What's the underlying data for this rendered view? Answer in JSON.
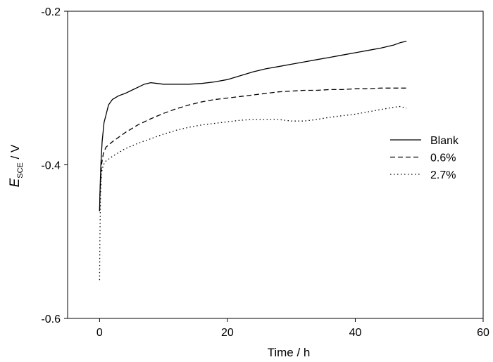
{
  "chart_data": {
    "type": "line",
    "xlabel": "Time / h",
    "ylabel_main": "E",
    "ylabel_sub": "SCE",
    "ylabel_unit": " / V",
    "xlim": [
      -5,
      60
    ],
    "ylim": [
      -0.6,
      -0.2
    ],
    "x_ticks": [
      0,
      20,
      40,
      60
    ],
    "x_tick_labels": [
      "0",
      "20",
      "40",
      "60"
    ],
    "y_ticks": [
      -0.6,
      -0.4,
      -0.2
    ],
    "y_tick_labels": [
      "-0.6",
      "-0.4",
      "-0.2"
    ],
    "grid": false,
    "legend_position": "right",
    "series": [
      {
        "name": "Blank",
        "dash": "solid",
        "x": [
          0,
          0.05,
          0.2,
          0.4,
          0.7,
          1,
          1.4,
          2,
          3,
          4,
          5,
          6,
          7,
          7.5,
          8,
          9,
          10,
          12,
          14,
          16,
          18,
          20,
          22,
          24,
          26,
          28,
          30,
          32,
          34,
          36,
          38,
          40,
          42,
          44,
          46,
          47,
          48
        ],
        "y": [
          -0.46,
          -0.44,
          -0.4,
          -0.37,
          -0.345,
          -0.335,
          -0.322,
          -0.315,
          -0.31,
          -0.307,
          -0.303,
          -0.299,
          -0.295,
          -0.294,
          -0.293,
          -0.294,
          -0.295,
          -0.295,
          -0.295,
          -0.294,
          -0.292,
          -0.289,
          -0.284,
          -0.279,
          -0.275,
          -0.272,
          -0.269,
          -0.266,
          -0.263,
          -0.26,
          -0.257,
          -0.254,
          -0.251,
          -0.248,
          -0.244,
          -0.241,
          -0.239
        ]
      },
      {
        "name": "0.6%",
        "dash": "dashed",
        "x": [
          0,
          0.1,
          0.3,
          0.6,
          1,
          2,
          3,
          4,
          6,
          8,
          10,
          12,
          14,
          16,
          18,
          20,
          22,
          24,
          26,
          28,
          30,
          32,
          34,
          36,
          38,
          40,
          42,
          44,
          46,
          48
        ],
        "y": [
          -0.46,
          -0.43,
          -0.4,
          -0.385,
          -0.377,
          -0.37,
          -0.364,
          -0.358,
          -0.348,
          -0.34,
          -0.333,
          -0.327,
          -0.322,
          -0.318,
          -0.315,
          -0.313,
          -0.311,
          -0.309,
          -0.307,
          -0.305,
          -0.304,
          -0.303,
          -0.303,
          -0.302,
          -0.302,
          -0.301,
          -0.301,
          -0.3,
          -0.3,
          -0.3
        ]
      },
      {
        "name": "2.7%",
        "dash": "dotted",
        "x": [
          0,
          0.05,
          0.15,
          0.3,
          0.6,
          1,
          2,
          3,
          4,
          6,
          8,
          10,
          12,
          14,
          16,
          18,
          20,
          22,
          24,
          26,
          28,
          30,
          32,
          34,
          36,
          38,
          40,
          42,
          44,
          46,
          47,
          48
        ],
        "y": [
          -0.55,
          -0.5,
          -0.44,
          -0.41,
          -0.4,
          -0.395,
          -0.389,
          -0.384,
          -0.379,
          -0.372,
          -0.366,
          -0.36,
          -0.355,
          -0.351,
          -0.348,
          -0.346,
          -0.344,
          -0.342,
          -0.341,
          -0.341,
          -0.341,
          -0.343,
          -0.343,
          -0.341,
          -0.338,
          -0.336,
          -0.334,
          -0.331,
          -0.328,
          -0.325,
          -0.324,
          -0.326
        ]
      }
    ]
  }
}
